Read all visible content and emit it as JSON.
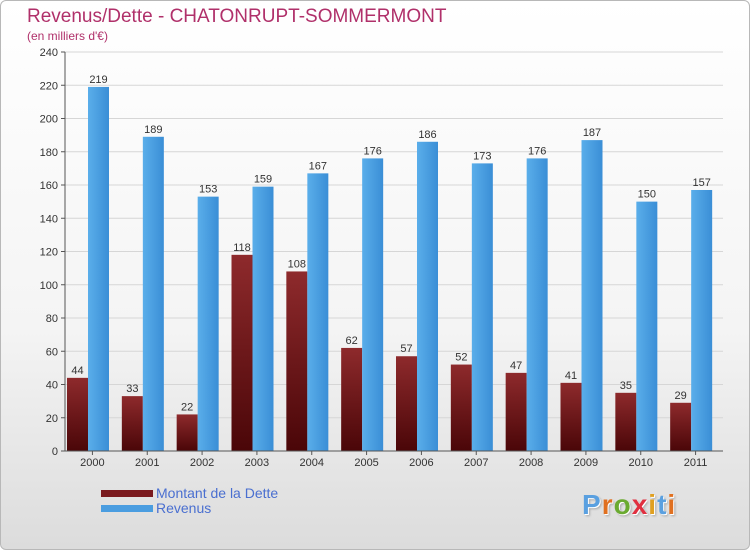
{
  "header": {
    "title": "Revenus/Dette - CHATONRUPT-SOMMERMONT",
    "subtitle": "(en milliers d'€)"
  },
  "colors": {
    "title": "#b0306a",
    "debt": "#7a1a1e",
    "revenue": "#4a9de0",
    "legend_text": "#4a6fd0"
  },
  "logo": {
    "text": "Proxiti",
    "letter_colors": [
      "#5aa0e0",
      "#e07020",
      "#6aaa30",
      "#e03040",
      "#e0a020",
      "#5aa0e0",
      "#e07020"
    ]
  },
  "chart_data": {
    "type": "bar",
    "title": "Revenus/Dette - CHATONRUPT-SOMMERMONT",
    "ylabel": "(en milliers d'€)",
    "xlabel": "",
    "categories": [
      "2000",
      "2001",
      "2002",
      "2003",
      "2004",
      "2005",
      "2006",
      "2007",
      "2008",
      "2009",
      "2010",
      "2011"
    ],
    "series": [
      {
        "name": "Montant de la Dette",
        "values": [
          44,
          33,
          22,
          118,
          108,
          62,
          57,
          52,
          47,
          41,
          35,
          29
        ]
      },
      {
        "name": "Revenus",
        "values": [
          219,
          189,
          153,
          159,
          167,
          176,
          186,
          173,
          176,
          187,
          150,
          157
        ]
      }
    ],
    "ylim": [
      0,
      240
    ],
    "yticks": [
      "0",
      "20",
      "40",
      "60",
      "80",
      "100",
      "120",
      "140",
      "160",
      "180",
      "200",
      "220",
      "240"
    ],
    "grid": true,
    "legend_position": "bottom-left"
  }
}
